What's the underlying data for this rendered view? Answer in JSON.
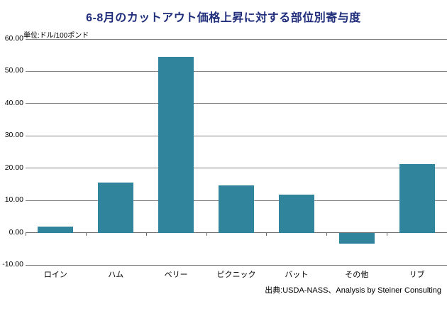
{
  "chart_data": {
    "type": "bar",
    "title": "6-8月のカットアウト価格上昇に対する部位別寄与度",
    "unit_label": "単位:ドル/100ポンド",
    "source": "出典:USDA-NASS、Analysis by Steiner Consulting",
    "categories": [
      "ロイン",
      "ハム",
      "ベリー",
      "ピクニック",
      "バット",
      "その他",
      "リブ"
    ],
    "values": [
      1.8,
      15.5,
      54.5,
      14.7,
      11.8,
      -3.5,
      21.3
    ],
    "ylim": [
      -10,
      60
    ],
    "ytick_step": 10,
    "ytick_labels": [
      "60.00",
      "50.00",
      "40.00",
      "30.00",
      "20.00",
      "10.00",
      "0.00",
      "-10.00"
    ],
    "xlabel": "",
    "ylabel": "",
    "legend": "none",
    "grid": "horizontal",
    "colors": {
      "bar": "#30849C",
      "grid": "#808080",
      "zero_axis": "#6B6B6B",
      "title": "#1F2D7B",
      "text": "#000000",
      "background": "#FFFFFF"
    }
  }
}
